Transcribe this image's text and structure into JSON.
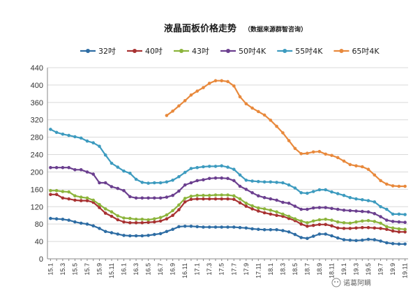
{
  "chart_data": {
    "type": "line",
    "title": "液晶面板价格走势",
    "subtitle": "（数据来源群智咨询）",
    "xlabel": "",
    "ylabel": "",
    "ylim": [
      0,
      440
    ],
    "yticks": [
      0,
      40,
      80,
      120,
      160,
      200,
      240,
      280,
      320,
      360,
      400,
      440
    ],
    "grid": true,
    "legend_position": "top",
    "x": [
      "15.1",
      "15.2",
      "15.3",
      "15.4",
      "15.5",
      "15.6",
      "15.7",
      "15.8",
      "15.9",
      "15.10",
      "15.11",
      "15.12",
      "16.1",
      "16.2",
      "16.3",
      "16.4",
      "16.5",
      "16.6",
      "16.7",
      "16.8",
      "16.9",
      "16.10",
      "16.11",
      "16.12",
      "17.1",
      "17.2",
      "17.3",
      "17.4",
      "17.5",
      "17.6",
      "17.7",
      "17.8",
      "17.9",
      "17.10",
      "17.11",
      "17.12",
      "18.1",
      "18.2",
      "18.3",
      "18.4",
      "18.5",
      "18.6",
      "18.7",
      "18.8",
      "18.9",
      "18.10",
      "18.11",
      "18.12",
      "19.1",
      "19.2",
      "19.3",
      "19.4",
      "19.5",
      "19.6",
      "19.7",
      "19.8",
      "19.9",
      "19.10",
      "19.11"
    ],
    "xtick_labels": [
      "15.1",
      "15.3",
      "15.5",
      "15.7",
      "15.9",
      "15.11",
      "16.1",
      "16.3",
      "16.5",
      "16.7",
      "16.9",
      "16.11",
      "17.1",
      "17.3",
      "17.5",
      "17.7",
      "17.9",
      "17.11",
      "18.1",
      "18.3",
      "18.5",
      "18.7",
      "18.9",
      "18.11",
      "19.1",
      "19.3",
      "19.5",
      "19.7",
      "19.9",
      "19.11"
    ],
    "series": [
      {
        "name": "32吋",
        "color": "#2e6da4",
        "values": [
          93,
          92,
          91,
          89,
          85,
          82,
          80,
          76,
          70,
          63,
          60,
          57,
          54,
          53,
          53,
          53,
          54,
          56,
          58,
          63,
          68,
          74,
          75,
          75,
          74,
          73,
          73,
          73,
          73,
          73,
          73,
          72,
          71,
          69,
          68,
          67,
          67,
          67,
          65,
          62,
          56,
          49,
          47,
          52,
          57,
          57,
          53,
          48,
          44,
          43,
          42,
          43,
          45,
          44,
          41,
          37,
          35,
          34,
          34
        ]
      },
      {
        "name": "40吋",
        "color": "#a83232",
        "values": [
          148,
          148,
          140,
          138,
          135,
          134,
          134,
          130,
          118,
          105,
          98,
          90,
          85,
          83,
          83,
          83,
          84,
          85,
          87,
          92,
          100,
          113,
          131,
          137,
          138,
          138,
          138,
          138,
          138,
          138,
          137,
          129,
          121,
          115,
          110,
          106,
          103,
          100,
          98,
          93,
          88,
          80,
          75,
          77,
          79,
          79,
          76,
          71,
          70,
          70,
          71,
          72,
          72,
          71,
          70,
          68,
          64,
          62,
          62
        ]
      },
      {
        "name": "43吋",
        "color": "#8cb43c",
        "values": [
          157,
          157,
          155,
          154,
          145,
          142,
          140,
          135,
          125,
          115,
          108,
          99,
          94,
          93,
          91,
          91,
          90,
          92,
          95,
          101,
          111,
          124,
          139,
          144,
          146,
          146,
          146,
          147,
          147,
          147,
          145,
          138,
          128,
          122,
          117,
          115,
          112,
          108,
          103,
          98,
          92,
          87,
          83,
          87,
          90,
          91,
          89,
          85,
          83,
          82,
          85,
          87,
          88,
          86,
          82,
          74,
          71,
          69,
          68
        ]
      },
      {
        "name": "50吋4K",
        "color": "#6b3f8f",
        "values": [
          210,
          210,
          210,
          210,
          205,
          205,
          200,
          195,
          175,
          175,
          166,
          162,
          157,
          143,
          140,
          140,
          140,
          140,
          140,
          142,
          146,
          156,
          170,
          175,
          180,
          182,
          185,
          186,
          186,
          185,
          180,
          167,
          160,
          152,
          145,
          141,
          138,
          135,
          130,
          128,
          121,
          114,
          114,
          117,
          118,
          118,
          116,
          114,
          112,
          111,
          110,
          109,
          108,
          104,
          97,
          89,
          86,
          85,
          84
        ]
      },
      {
        "name": "55吋4K",
        "color": "#3d9bbf",
        "values": [
          298,
          291,
          287,
          284,
          281,
          278,
          271,
          267,
          259,
          239,
          220,
          211,
          202,
          197,
          183,
          176,
          174,
          175,
          175,
          177,
          181,
          189,
          199,
          208,
          210,
          212,
          213,
          213,
          214,
          211,
          206,
          193,
          181,
          179,
          178,
          177,
          177,
          176,
          175,
          170,
          163,
          152,
          151,
          155,
          159,
          159,
          154,
          150,
          146,
          141,
          138,
          136,
          134,
          131,
          120,
          114,
          103,
          103,
          102
        ]
      },
      {
        "name": "65吋4K",
        "color": "#e8893c",
        "values": [
          null,
          null,
          null,
          null,
          null,
          null,
          null,
          null,
          null,
          null,
          null,
          null,
          null,
          null,
          null,
          null,
          null,
          null,
          null,
          330,
          340,
          352,
          364,
          377,
          386,
          394,
          404,
          410,
          410,
          408,
          398,
          373,
          357,
          347,
          339,
          331,
          319,
          305,
          290,
          272,
          254,
          242,
          243,
          246,
          247,
          241,
          238,
          233,
          225,
          217,
          214,
          212,
          206,
          193,
          180,
          172,
          168,
          167,
          167
        ]
      }
    ]
  },
  "watermark": {
    "text": "诺葛阿瞒",
    "icon": "wechat-icon"
  }
}
